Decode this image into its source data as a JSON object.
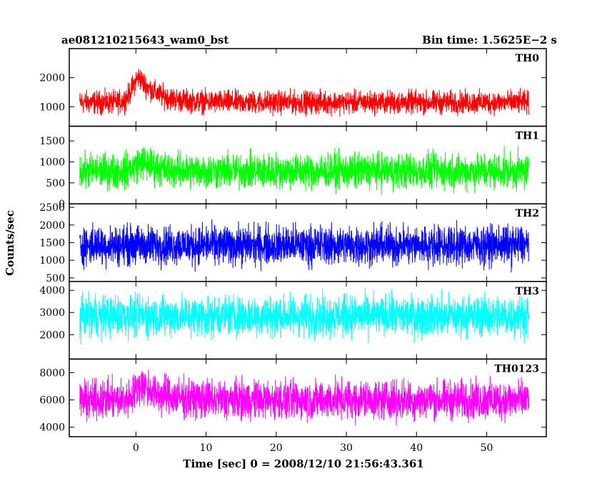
{
  "chart_data": {
    "type": "line",
    "title_left": "ae081210215643_wam0_bst",
    "title_right": "Bin time: 1.5625E−2 s",
    "xlabel": "Time [sec] 0 = 2008/12/10 21:56:43.361",
    "ylabel": "Counts/sec",
    "xlim": [
      -9.5,
      58.5
    ],
    "x_ticks": [
      0,
      10,
      20,
      30,
      40,
      50
    ],
    "x_tick_labels": [
      "0",
      "10",
      "20",
      "30",
      "40",
      "50"
    ],
    "data_x_range": [
      -8,
      56
    ],
    "bin_time": 0.015625,
    "panels": [
      {
        "name": "TH0",
        "color": "#ff0000",
        "ylim": [
          330,
          3000
        ],
        "y_ticks": [
          1000,
          2000
        ],
        "y_tick_labels": [
          "1000",
          "2000"
        ],
        "baseline_mean": 1150,
        "baseline_spread": 580,
        "burst": {
          "peak_time": 0.5,
          "extra_counts": 850,
          "rise_sec": 1.0,
          "decay_sec": 2.5
        }
      },
      {
        "name": "TH1",
        "color": "#00ff00",
        "ylim": [
          0,
          1850
        ],
        "y_ticks": [
          0,
          500,
          1000,
          1500
        ],
        "y_tick_labels": [
          "0",
          "500",
          "1000",
          "1500"
        ],
        "baseline_mean": 780,
        "baseline_spread": 620,
        "burst": {
          "peak_time": 1.0,
          "extra_counts": 220,
          "rise_sec": 1.0,
          "decay_sec": 2.0
        }
      },
      {
        "name": "TH2",
        "color": "#0000ff",
        "ylim": [
          400,
          2600
        ],
        "y_ticks": [
          500,
          1000,
          1500,
          2000,
          2500
        ],
        "y_tick_labels": [
          "500",
          "1000",
          "1500",
          "2000",
          "2500"
        ],
        "baseline_mean": 1430,
        "baseline_spread": 820,
        "burst": {
          "peak_time": 1.0,
          "extra_counts": 0,
          "rise_sec": 1.0,
          "decay_sec": 1.0
        }
      },
      {
        "name": "TH3",
        "color": "#00ffff",
        "ylim": [
          900,
          4400
        ],
        "y_ticks": [
          2000,
          3000,
          4000
        ],
        "y_tick_labels": [
          "2000",
          "3000",
          "4000"
        ],
        "baseline_mean": 2850,
        "baseline_spread": 1350,
        "burst": {
          "peak_time": 1.0,
          "extra_counts": 0,
          "rise_sec": 1.0,
          "decay_sec": 1.0
        }
      },
      {
        "name": "TH0123",
        "color": "#ff00ff",
        "ylim": [
          3300,
          9000
        ],
        "y_ticks": [
          4000,
          6000,
          8000
        ],
        "y_tick_labels": [
          "4000",
          "6000",
          "8000"
        ],
        "baseline_mean": 6000,
        "baseline_spread": 2100,
        "burst": {
          "peak_time": 1.0,
          "extra_counts": 1100,
          "rise_sec": 1.0,
          "decay_sec": 2.5
        }
      }
    ]
  }
}
